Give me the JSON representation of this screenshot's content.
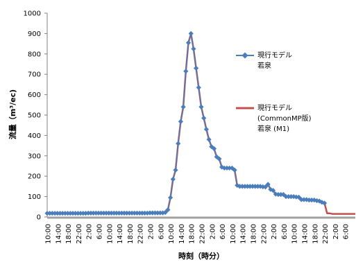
{
  "chart_data": {
    "type": "line",
    "title": "",
    "xlabel": "時刻（時分）",
    "ylabel": "流量（m³/ec)",
    "ylim": [
      0,
      1000
    ],
    "yticks": [
      "0",
      "100",
      "200",
      "300",
      "400",
      "500",
      "600",
      "700",
      "800",
      "900",
      "1000"
    ],
    "x_tick_labels": [
      "10:00",
      "14:00",
      "18:00",
      "22:00",
      "2:00",
      "6:00",
      "10:00",
      "14:00",
      "18:00",
      "22:00",
      "2:00",
      "6:00",
      "10:00",
      "14:00",
      "18:00",
      "22:00",
      "2:00",
      "6:00",
      "10:00",
      "14:00",
      "18:00",
      "22:00",
      "2:00",
      "6:00",
      "10:00",
      "14:00",
      "18:00",
      "22:00",
      "2:00",
      "6:00"
    ],
    "x_unit_hours": 4,
    "grid": false,
    "legend_position": "right",
    "colors": {
      "series1": "#4a7ebb",
      "series2": "#c0504d",
      "baseline": "#a0a0a0"
    },
    "series": [
      {
        "name": "現行モデル\n若泉",
        "legend_lines": [
          "現行モデル",
          "若泉"
        ],
        "marker": "diamond",
        "points": [
          [
            0,
            18
          ],
          [
            0.5,
            18
          ],
          [
            1,
            18
          ],
          [
            1.5,
            18
          ],
          [
            2,
            18
          ],
          [
            2.5,
            18
          ],
          [
            3,
            18
          ],
          [
            3.5,
            18
          ],
          [
            4,
            18
          ],
          [
            4.5,
            18
          ],
          [
            5,
            18
          ],
          [
            5.5,
            18
          ],
          [
            6,
            18
          ],
          [
            6.5,
            18
          ],
          [
            7,
            18
          ],
          [
            7.5,
            18
          ],
          [
            8,
            19
          ],
          [
            8.5,
            19
          ],
          [
            9,
            19
          ],
          [
            9.5,
            19
          ],
          [
            10,
            19
          ],
          [
            10.5,
            19
          ],
          [
            11,
            19
          ],
          [
            11.5,
            19
          ],
          [
            12,
            19
          ],
          [
            12.5,
            19
          ],
          [
            13,
            19
          ],
          [
            13.5,
            19
          ],
          [
            14,
            19
          ],
          [
            14.5,
            19
          ],
          [
            15,
            19
          ],
          [
            15.5,
            19
          ],
          [
            16,
            19
          ],
          [
            16.5,
            19
          ],
          [
            17,
            19
          ],
          [
            17.5,
            19
          ],
          [
            18,
            19
          ],
          [
            18.5,
            19
          ],
          [
            19,
            19
          ],
          [
            19.5,
            19
          ],
          [
            20,
            20
          ],
          [
            20.5,
            20
          ],
          [
            21,
            20
          ],
          [
            21.5,
            20
          ],
          [
            22,
            20
          ],
          [
            22.5,
            20
          ],
          [
            23,
            22
          ],
          [
            23.5,
            35
          ],
          [
            24,
            95
          ],
          [
            24.5,
            185
          ],
          [
            25,
            230
          ],
          [
            25.5,
            360
          ],
          [
            26,
            468
          ],
          [
            26.5,
            540
          ],
          [
            27,
            715
          ],
          [
            27.5,
            855
          ],
          [
            28,
            900
          ],
          [
            28.5,
            825
          ],
          [
            29,
            730
          ],
          [
            29.5,
            635
          ],
          [
            30,
            540
          ],
          [
            30.5,
            485
          ],
          [
            31,
            430
          ],
          [
            31.5,
            380
          ],
          [
            32,
            345
          ],
          [
            32.5,
            335
          ],
          [
            33,
            295
          ],
          [
            33.5,
            285
          ],
          [
            34,
            245
          ],
          [
            34.5,
            240
          ],
          [
            35,
            240
          ],
          [
            35.5,
            240
          ],
          [
            36,
            240
          ],
          [
            36.5,
            230
          ],
          [
            37,
            155
          ],
          [
            37.5,
            150
          ],
          [
            38,
            150
          ],
          [
            38.5,
            150
          ],
          [
            39,
            150
          ],
          [
            39.5,
            150
          ],
          [
            40,
            150
          ],
          [
            40.5,
            150
          ],
          [
            41,
            150
          ],
          [
            41.5,
            150
          ],
          [
            42,
            148
          ],
          [
            42.5,
            147
          ],
          [
            43,
            160
          ],
          [
            43.5,
            135
          ],
          [
            44,
            130
          ],
          [
            44.5,
            112
          ],
          [
            45,
            110
          ],
          [
            45.5,
            110
          ],
          [
            46,
            110
          ],
          [
            46.5,
            100
          ],
          [
            47,
            100
          ],
          [
            47.5,
            100
          ],
          [
            48,
            100
          ],
          [
            48.5,
            98
          ],
          [
            49,
            97
          ],
          [
            49.5,
            85
          ],
          [
            50,
            85
          ],
          [
            50.5,
            85
          ],
          [
            51,
            83
          ],
          [
            51.5,
            83
          ],
          [
            52,
            83
          ],
          [
            52.5,
            80
          ],
          [
            53,
            78
          ],
          [
            53.5,
            72
          ],
          [
            54,
            68
          ]
        ]
      },
      {
        "name": "現行モデル\n(CommonMP版)\n若泉 (M1)",
        "legend_lines": [
          "現行モデル",
          "(CommonMP版)",
          "若泉 (M1)"
        ],
        "marker": "none",
        "points": [
          [
            0,
            18
          ],
          [
            2,
            18
          ],
          [
            4,
            18
          ],
          [
            6,
            18
          ],
          [
            8,
            19
          ],
          [
            10,
            19
          ],
          [
            12,
            19
          ],
          [
            14,
            19
          ],
          [
            16,
            19
          ],
          [
            18,
            19
          ],
          [
            20,
            20
          ],
          [
            22,
            20
          ],
          [
            23,
            22
          ],
          [
            23.5,
            35
          ],
          [
            24,
            95
          ],
          [
            24.5,
            185
          ],
          [
            25,
            230
          ],
          [
            25.5,
            360
          ],
          [
            26,
            468
          ],
          [
            26.5,
            540
          ],
          [
            27,
            715
          ],
          [
            27.5,
            855
          ],
          [
            28,
            900
          ],
          [
            28.5,
            825
          ],
          [
            29,
            730
          ],
          [
            29.5,
            635
          ],
          [
            30,
            540
          ],
          [
            30.5,
            485
          ],
          [
            31,
            430
          ],
          [
            31.5,
            380
          ],
          [
            32,
            345
          ],
          [
            32.5,
            335
          ],
          [
            33,
            295
          ],
          [
            33.5,
            285
          ],
          [
            34,
            245
          ],
          [
            35,
            240
          ],
          [
            36,
            240
          ],
          [
            36.5,
            230
          ],
          [
            37,
            155
          ],
          [
            38,
            150
          ],
          [
            40,
            150
          ],
          [
            42,
            148
          ],
          [
            42.5,
            147
          ],
          [
            43,
            160
          ],
          [
            43.5,
            135
          ],
          [
            44,
            130
          ],
          [
            44.5,
            112
          ],
          [
            45,
            110
          ],
          [
            46,
            110
          ],
          [
            46.5,
            100
          ],
          [
            48,
            100
          ],
          [
            49,
            97
          ],
          [
            49.5,
            85
          ],
          [
            50,
            85
          ],
          [
            51,
            83
          ],
          [
            52,
            83
          ],
          [
            52.5,
            80
          ],
          [
            53,
            78
          ],
          [
            53.5,
            72
          ],
          [
            54,
            68
          ],
          [
            54.5,
            18
          ],
          [
            55,
            18
          ],
          [
            55.5,
            15
          ],
          [
            56,
            15
          ],
          [
            58,
            15
          ],
          [
            60,
            15
          ]
        ]
      }
    ]
  }
}
